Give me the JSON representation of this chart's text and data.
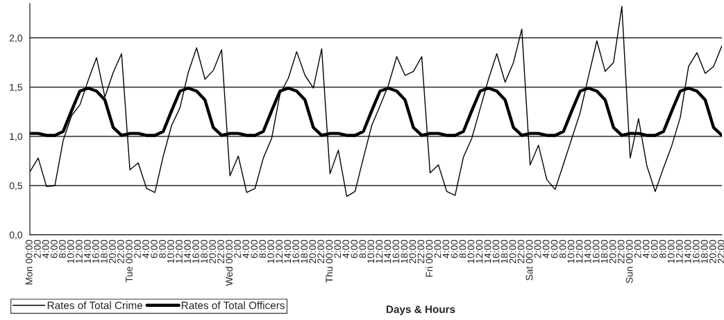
{
  "chart_data": {
    "type": "line",
    "xlabel": "Days & Hours",
    "categories": [
      "Mon 00:00",
      "2:00",
      "4:00",
      "6:00",
      "8:00",
      "10:00",
      "12:00",
      "14:00",
      "16:00",
      "18:00",
      "20:00",
      "22:00",
      "Tue 00:00",
      "2:00",
      "4:00",
      "6:00",
      "8:00",
      "10:00",
      "12:00",
      "14:00",
      "16:00",
      "18:00",
      "20:00",
      "22:00",
      "Wed 00:00",
      "2:00",
      "4:00",
      "6:00",
      "8:00",
      "10:00",
      "12:00",
      "14:00",
      "16:00",
      "18:00",
      "20:00",
      "22:00",
      "Thu 00:00",
      "2:00",
      "4:00",
      "6:00",
      "8:00",
      "10:00",
      "12:00",
      "14:00",
      "16:00",
      "18:00",
      "20:00",
      "22:00",
      "Fri 00:00",
      "2:00",
      "4:00",
      "6:00",
      "8:00",
      "10:00",
      "12:00",
      "14:00",
      "16:00",
      "18:00",
      "20:00",
      "22:00",
      "Sat 00:00",
      "2:00",
      "4:00",
      "6:00",
      "8:00",
      "10:00",
      "12:00",
      "14:00",
      "16:00",
      "18:00",
      "20:00",
      "22:00",
      "Sun 00:00",
      "2:00",
      "4:00",
      "6:00",
      "8:00",
      "10:00",
      "12:00",
      "14:00",
      "16:00",
      "18:00",
      "20:00",
      "22:00"
    ],
    "series": [
      {
        "name": "Rates of Total Crime",
        "color": "#000000",
        "values": [
          0.64,
          0.78,
          0.49,
          0.5,
          0.96,
          1.21,
          1.32,
          1.57,
          1.8,
          1.4,
          1.65,
          1.84,
          0.66,
          0.73,
          0.47,
          0.43,
          0.8,
          1.11,
          1.29,
          1.65,
          1.9,
          1.58,
          1.67,
          1.88,
          0.6,
          0.8,
          0.43,
          0.47,
          0.78,
          0.98,
          1.43,
          1.59,
          1.86,
          1.62,
          1.49,
          1.89,
          0.62,
          0.86,
          0.39,
          0.44,
          0.78,
          1.11,
          1.31,
          1.52,
          1.81,
          1.62,
          1.66,
          1.81,
          0.63,
          0.71,
          0.44,
          0.4,
          0.79,
          0.98,
          1.28,
          1.58,
          1.84,
          1.55,
          1.75,
          2.09,
          0.71,
          0.91,
          0.56,
          0.46,
          0.72,
          0.98,
          1.24,
          1.61,
          1.97,
          1.66,
          1.75,
          2.32,
          0.78,
          1.18,
          0.7,
          0.44,
          0.68,
          0.91,
          1.19,
          1.71,
          1.85,
          1.64,
          1.71,
          1.92
        ]
      },
      {
        "name": "Rates of Total Officers",
        "color": "#000000",
        "values": [
          1.03,
          1.03,
          1.01,
          1.01,
          1.05,
          1.26,
          1.46,
          1.49,
          1.46,
          1.37,
          1.09,
          1.01,
          1.03,
          1.03,
          1.01,
          1.01,
          1.05,
          1.26,
          1.46,
          1.49,
          1.46,
          1.37,
          1.09,
          1.01,
          1.03,
          1.03,
          1.01,
          1.01,
          1.05,
          1.26,
          1.46,
          1.49,
          1.46,
          1.37,
          1.09,
          1.01,
          1.03,
          1.03,
          1.01,
          1.01,
          1.05,
          1.26,
          1.46,
          1.49,
          1.46,
          1.37,
          1.09,
          1.01,
          1.03,
          1.03,
          1.01,
          1.01,
          1.05,
          1.26,
          1.46,
          1.49,
          1.46,
          1.37,
          1.09,
          1.01,
          1.03,
          1.03,
          1.01,
          1.01,
          1.05,
          1.26,
          1.46,
          1.49,
          1.46,
          1.37,
          1.09,
          1.01,
          1.03,
          1.03,
          1.01,
          1.01,
          1.05,
          1.26,
          1.46,
          1.49,
          1.46,
          1.37,
          1.09,
          1.01
        ]
      }
    ],
    "ylim": [
      0,
      2.35
    ],
    "yticks": [
      {
        "value": 0,
        "label": "0,0"
      },
      {
        "value": 0.5,
        "label": "0,5"
      },
      {
        "value": 1,
        "label": "1,0"
      },
      {
        "value": 1.5,
        "label": "1,5"
      },
      {
        "value": 2,
        "label": "2,0"
      }
    ],
    "grid": "y",
    "legend": "bottom left",
    "marker": "none",
    "line_style": "solid"
  }
}
